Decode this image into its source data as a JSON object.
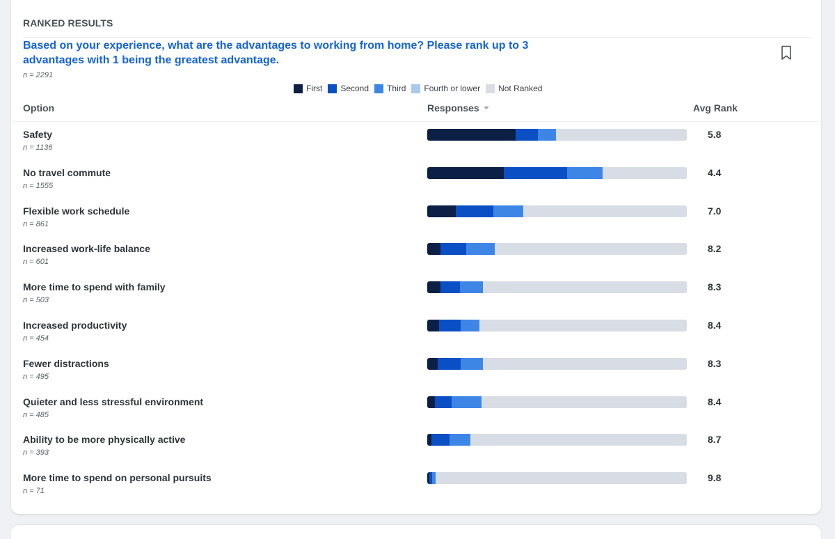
{
  "header": {
    "section_label": "RANKED RESULTS",
    "question": "Based on your experience, what are the advantages to working from home? Please rank up to 3 advantages with 1 being the greatest advantage.",
    "total_n": "n = 2291"
  },
  "legend": [
    {
      "label": "First",
      "color": "#0c1f45"
    },
    {
      "label": "Second",
      "color": "#0b4fc4"
    },
    {
      "label": "Third",
      "color": "#3d86e6"
    },
    {
      "label": "Fourth or lower",
      "color": "#a9c8f2"
    },
    {
      "label": "Not Ranked",
      "color": "#d8dde5"
    }
  ],
  "columns": {
    "option": "Option",
    "responses": "Responses",
    "avg_rank": "Avg Rank"
  },
  "chart_data": {
    "type": "bar",
    "orientation": "horizontal",
    "stacked": true,
    "unit": "percent of respondents",
    "categories": [
      "Safety",
      "No travel commute",
      "Flexible work schedule",
      "Increased work-life balance",
      "More time to spend with family",
      "Increased productivity",
      "Fewer distractions",
      "Quieter and less stressful environment",
      "Ability to be more physically active",
      "More time to spend on personal pursuits"
    ],
    "n_labels": [
      "n = 1136",
      "n = 1555",
      "n = 861",
      "n = 601",
      "n = 503",
      "n = 454",
      "n = 495",
      "n = 485",
      "n = 393",
      "n = 71"
    ],
    "avg_rank": [
      "5.8",
      "4.4",
      "7.0",
      "8.2",
      "8.3",
      "8.4",
      "8.3",
      "8.4",
      "8.7",
      "9.8"
    ],
    "series": [
      {
        "name": "First",
        "values": [
          34,
          29.5,
          11,
          5,
          5,
          4.5,
          4,
          3,
          1.5,
          0.8
        ]
      },
      {
        "name": "Second",
        "values": [
          8.5,
          24.5,
          14.5,
          10,
          7.5,
          8.5,
          9,
          6.5,
          7,
          1.2
        ]
      },
      {
        "name": "Third",
        "values": [
          7,
          13.5,
          11.5,
          11,
          9,
          7,
          8.5,
          11.5,
          8,
          1.2
        ]
      },
      {
        "name": "Fourth or lower",
        "values": [
          0,
          0,
          0,
          0,
          0,
          0,
          0,
          0,
          0,
          0
        ]
      },
      {
        "name": "Not Ranked",
        "values": [
          50.5,
          32.5,
          63,
          74,
          78.5,
          80,
          78.5,
          79,
          83.5,
          96.8
        ]
      }
    ],
    "xlim": [
      0,
      100
    ],
    "grid": false,
    "legend_position": "top-center"
  }
}
